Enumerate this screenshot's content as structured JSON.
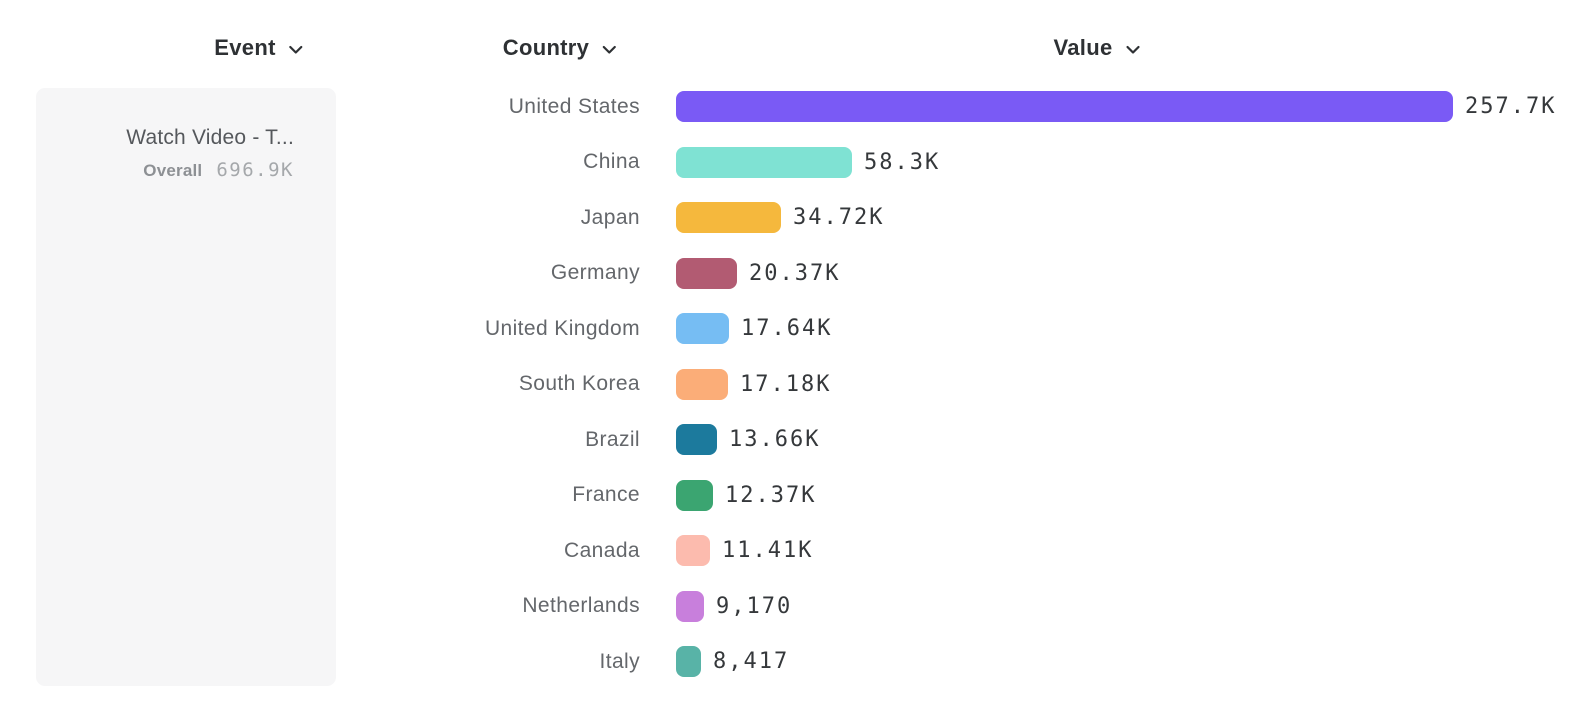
{
  "columns": {
    "event": {
      "label": "Event"
    },
    "country": {
      "label": "Country"
    },
    "value": {
      "label": "Value"
    }
  },
  "event_panel": {
    "event_name": "Watch Video - T...",
    "metric_label": "Overall",
    "metric_value": "696.9K"
  },
  "chart_data": {
    "type": "bar",
    "orientation": "horizontal",
    "title": "",
    "xlabel": "Value",
    "ylabel": "Country",
    "xlim": [
      0,
      257700
    ],
    "grid": false,
    "legend": "none",
    "categories": [
      "United States",
      "China",
      "Japan",
      "Germany",
      "United Kingdom",
      "South Korea",
      "Brazil",
      "France",
      "Canada",
      "Netherlands",
      "Italy"
    ],
    "values": [
      257700,
      58300,
      34720,
      20370,
      17640,
      17180,
      13660,
      12370,
      11410,
      9170,
      8417
    ],
    "value_labels": [
      "257.7K",
      "58.3K",
      "34.72K",
      "20.37K",
      "17.64K",
      "17.18K",
      "13.66K",
      "12.37K",
      "11.41K",
      "9,170",
      "8,417"
    ],
    "bar_colors": [
      "#7a5af5",
      "#7fe2d3",
      "#f5b83d",
      "#b25b72",
      "#76bdf3",
      "#fbad78",
      "#1c7a9d",
      "#3ba571",
      "#fcbbae",
      "#c87fdc",
      "#58b3a7"
    ]
  },
  "ui_colors": {
    "page_background": "#ffffff",
    "card_background": "#f6f6f7",
    "header_text": "#2e3134",
    "country_label_text": "#64676b",
    "value_label_text": "#35383b"
  }
}
